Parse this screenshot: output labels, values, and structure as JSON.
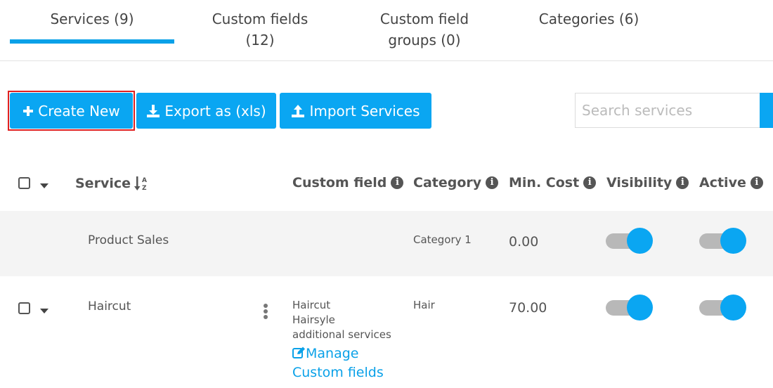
{
  "tabs": [
    {
      "label_line1": "Services (9)",
      "label_line2": ""
    },
    {
      "label_line1": "Custom fields",
      "label_line2": "(12)"
    },
    {
      "label_line1": "Custom field",
      "label_line2": "groups (0)"
    },
    {
      "label_line1": "Categories (6)",
      "label_line2": ""
    }
  ],
  "toolbar": {
    "create_label": "Create New",
    "export_label": "Export as (xls)",
    "import_label": "Import Services",
    "search_placeholder": "Search services"
  },
  "table": {
    "headers": {
      "service": "Service",
      "custom_field": "Custom field",
      "category": "Category",
      "min_cost": "Min. Cost",
      "visibility": "Visibility",
      "active": "Active"
    },
    "rows": [
      {
        "service": "Product Sales",
        "custom_fields": [],
        "category": "Category 1",
        "min_cost": "0.00",
        "visibility": true,
        "active": true
      },
      {
        "service": "Haircut",
        "custom_fields": [
          "Haircut",
          "Hairsyle",
          "additional services"
        ],
        "manage_link_line1": "Manage",
        "manage_link_line2": "Custom fields",
        "category": "Hair",
        "min_cost": "70.00",
        "visibility": true,
        "active": true
      }
    ]
  },
  "colors": {
    "accent": "#0aa6f2",
    "highlight": "#e02020"
  },
  "icons": [
    "plus-icon",
    "download-icon",
    "upload-icon",
    "sort-alpha-icon",
    "info-icon",
    "edit-icon",
    "kebab-menu-icon",
    "caret-down-icon"
  ]
}
